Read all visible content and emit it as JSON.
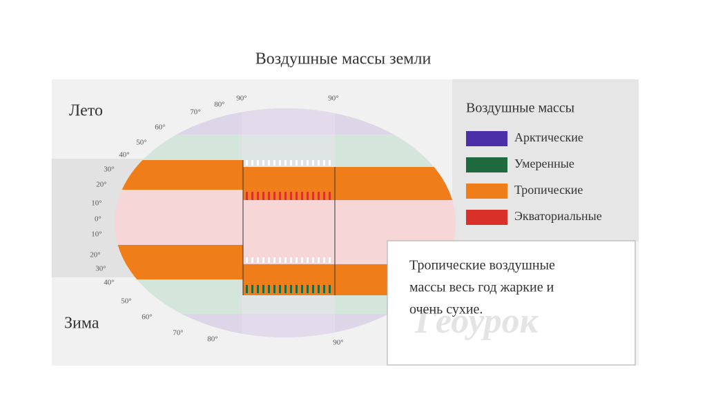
{
  "header": {
    "title": "Воздушные массы земли"
  },
  "seasons": {
    "summer": "Лето",
    "winter": "Зима"
  },
  "latitudes": [
    "90°",
    "80°",
    "70°",
    "60°",
    "50°",
    "40°",
    "30°",
    "20°",
    "10°",
    "0°",
    "10°",
    "20°",
    "30°",
    "40°",
    "50°",
    "60°",
    "70°",
    "80°",
    "90°",
    "90°"
  ],
  "legend": {
    "title": "Воздушные массы",
    "items": [
      {
        "label": "Арктические",
        "color": "#4a2fa8"
      },
      {
        "label": "Умеренные",
        "color": "#1e6a3e"
      },
      {
        "label": "Тропические",
        "color": "#ef7d1a"
      },
      {
        "label": "Экваториальные",
        "color": "#d9302a"
      }
    ]
  },
  "note": {
    "lines": [
      "Тропические воздушные",
      "массы весь год жаркие и",
      "очень сухие."
    ]
  },
  "watermark": "Геоурок"
}
